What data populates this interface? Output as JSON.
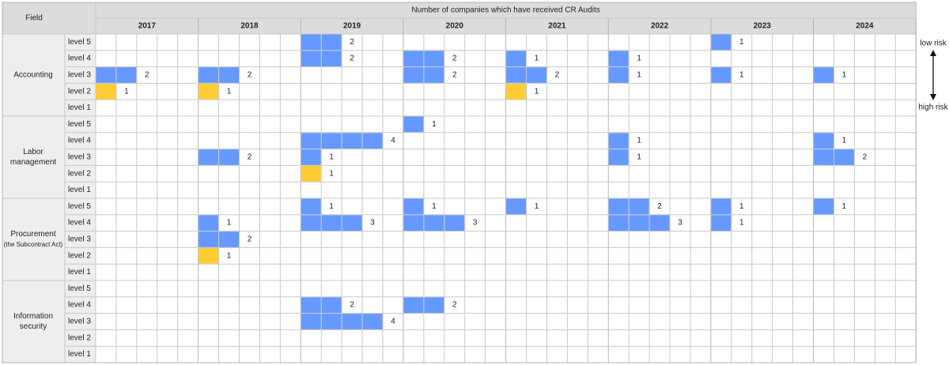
{
  "chart_data": {
    "type": "heatmap",
    "title": "Number of companies which have received CR Audits",
    "field_header": "Field",
    "years": [
      "2017",
      "2018",
      "2019",
      "2020",
      "2021",
      "2022",
      "2023",
      "2024"
    ],
    "levels": [
      "level 5",
      "level 4",
      "level 3",
      "level 2",
      "level 1"
    ],
    "fields": [
      {
        "name_lines": [
          "Accounting"
        ]
      },
      {
        "name_lines": [
          "Labor",
          "management"
        ]
      },
      {
        "name_lines": [
          "Procurement",
          "(the Subcontract Act)"
        ]
      },
      {
        "name_lines": [
          "Information",
          "security"
        ]
      }
    ],
    "values": [
      [
        [
          0,
          0,
          2,
          0,
          0,
          0,
          1,
          0
        ],
        [
          0,
          0,
          2,
          2,
          1,
          1,
          0,
          0
        ],
        [
          2,
          2,
          0,
          2,
          2,
          1,
          1,
          1
        ],
        [
          1,
          1,
          0,
          0,
          1,
          0,
          0,
          0
        ],
        [
          0,
          0,
          0,
          0,
          0,
          0,
          0,
          0
        ]
      ],
      [
        [
          0,
          0,
          0,
          1,
          0,
          0,
          0,
          0
        ],
        [
          0,
          0,
          4,
          0,
          0,
          1,
          0,
          1
        ],
        [
          0,
          2,
          1,
          0,
          0,
          1,
          0,
          2
        ],
        [
          0,
          0,
          1,
          0,
          0,
          0,
          0,
          0
        ],
        [
          0,
          0,
          0,
          0,
          0,
          0,
          0,
          0
        ]
      ],
      [
        [
          0,
          0,
          1,
          1,
          1,
          2,
          1,
          1
        ],
        [
          0,
          1,
          3,
          3,
          0,
          3,
          1,
          0
        ],
        [
          0,
          2,
          0,
          0,
          0,
          0,
          0,
          0
        ],
        [
          0,
          1,
          0,
          0,
          0,
          0,
          0,
          0
        ],
        [
          0,
          0,
          0,
          0,
          0,
          0,
          0,
          0
        ]
      ],
      [
        [
          0,
          0,
          0,
          0,
          0,
          0,
          0,
          0
        ],
        [
          0,
          0,
          2,
          2,
          0,
          0,
          0,
          0
        ],
        [
          0,
          0,
          4,
          0,
          0,
          0,
          0,
          0
        ],
        [
          0,
          0,
          0,
          0,
          0,
          0,
          0,
          0
        ],
        [
          0,
          0,
          0,
          0,
          0,
          0,
          0,
          0
        ]
      ]
    ],
    "colors": {
      "normal": "#6699ff",
      "level2": "#ffcc33",
      "header_bg": "#dcdcdc",
      "label_bg": "#eeeeee",
      "grid": "#c8c8c8"
    },
    "risk_legend": {
      "top": "low risk",
      "bottom": "high risk"
    }
  }
}
